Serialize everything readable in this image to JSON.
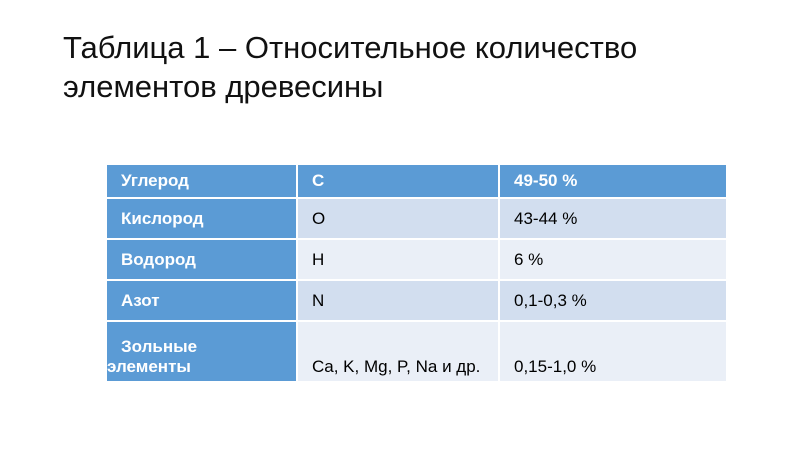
{
  "title": "Таблица 1 – Относительное количество элементов древесины",
  "colors": {
    "header": "#5b9bd5",
    "row_dark": "#d2deef",
    "row_light": "#eaeff7"
  },
  "table": {
    "rows": [
      {
        "name": "Углерод",
        "symbol": "C",
        "amount": "49-50 %"
      },
      {
        "name": "Кислород",
        "symbol": "O",
        "amount": "43-44 %"
      },
      {
        "name": "Водород",
        "symbol": "H",
        "amount": "6 %"
      },
      {
        "name": "Азот",
        "symbol": "N",
        "amount": "0,1-0,3 %"
      },
      {
        "name_line1": "Зольные",
        "name_line2": "элементы",
        "symbol": "Ca, K, Mg, P, Na и др.",
        "amount": "0,15-1,0 %"
      }
    ]
  }
}
